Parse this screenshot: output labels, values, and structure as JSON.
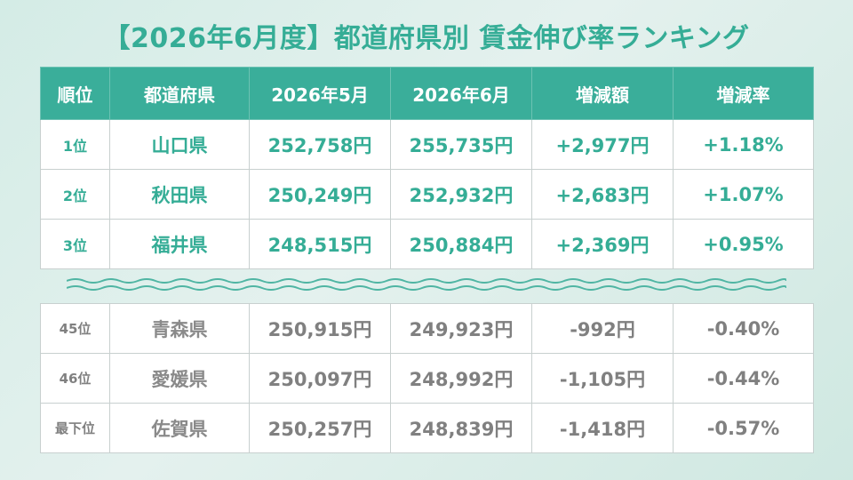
{
  "title": "【2026年6月度】都道府県別 賃金伸び率ランキング",
  "headers": [
    "順位",
    "都道府県",
    "2026年5月",
    "2026年6月",
    "増減額",
    "増減率"
  ],
  "top_rows": [
    {
      "rank": "1位",
      "pref": "山口県",
      "may": "252,758円",
      "jun": "255,735円",
      "diff": "+2,977円",
      "rate": "+1.18%"
    },
    {
      "rank": "2位",
      "pref": "秋田県",
      "may": "250,249円",
      "jun": "252,932円",
      "diff": "+2,683円",
      "rate": "+1.07%"
    },
    {
      "rank": "3位",
      "pref": "福井県",
      "may": "248,515円",
      "jun": "250,884円",
      "diff": "+2,369円",
      "rate": "+0.95%"
    }
  ],
  "bottom_rows": [
    {
      "rank": "45位",
      "pref": "青森県",
      "may": "250,915円",
      "jun": "249,923円",
      "diff": "-992円",
      "rate": "-0.40%"
    },
    {
      "rank": "46位",
      "pref": "愛媛県",
      "may": "250,097円",
      "jun": "248,992円",
      "diff": "-1,105円",
      "rate": "-0.44%"
    },
    {
      "rank": "最下位",
      "pref": "佐賀県",
      "may": "250,257円",
      "jun": "248,839円",
      "diff": "-1,418円",
      "rate": "-0.57%"
    }
  ],
  "colors": {
    "accent": "#3aae9a",
    "title": "#35ad96",
    "negative_text": "#808080"
  }
}
